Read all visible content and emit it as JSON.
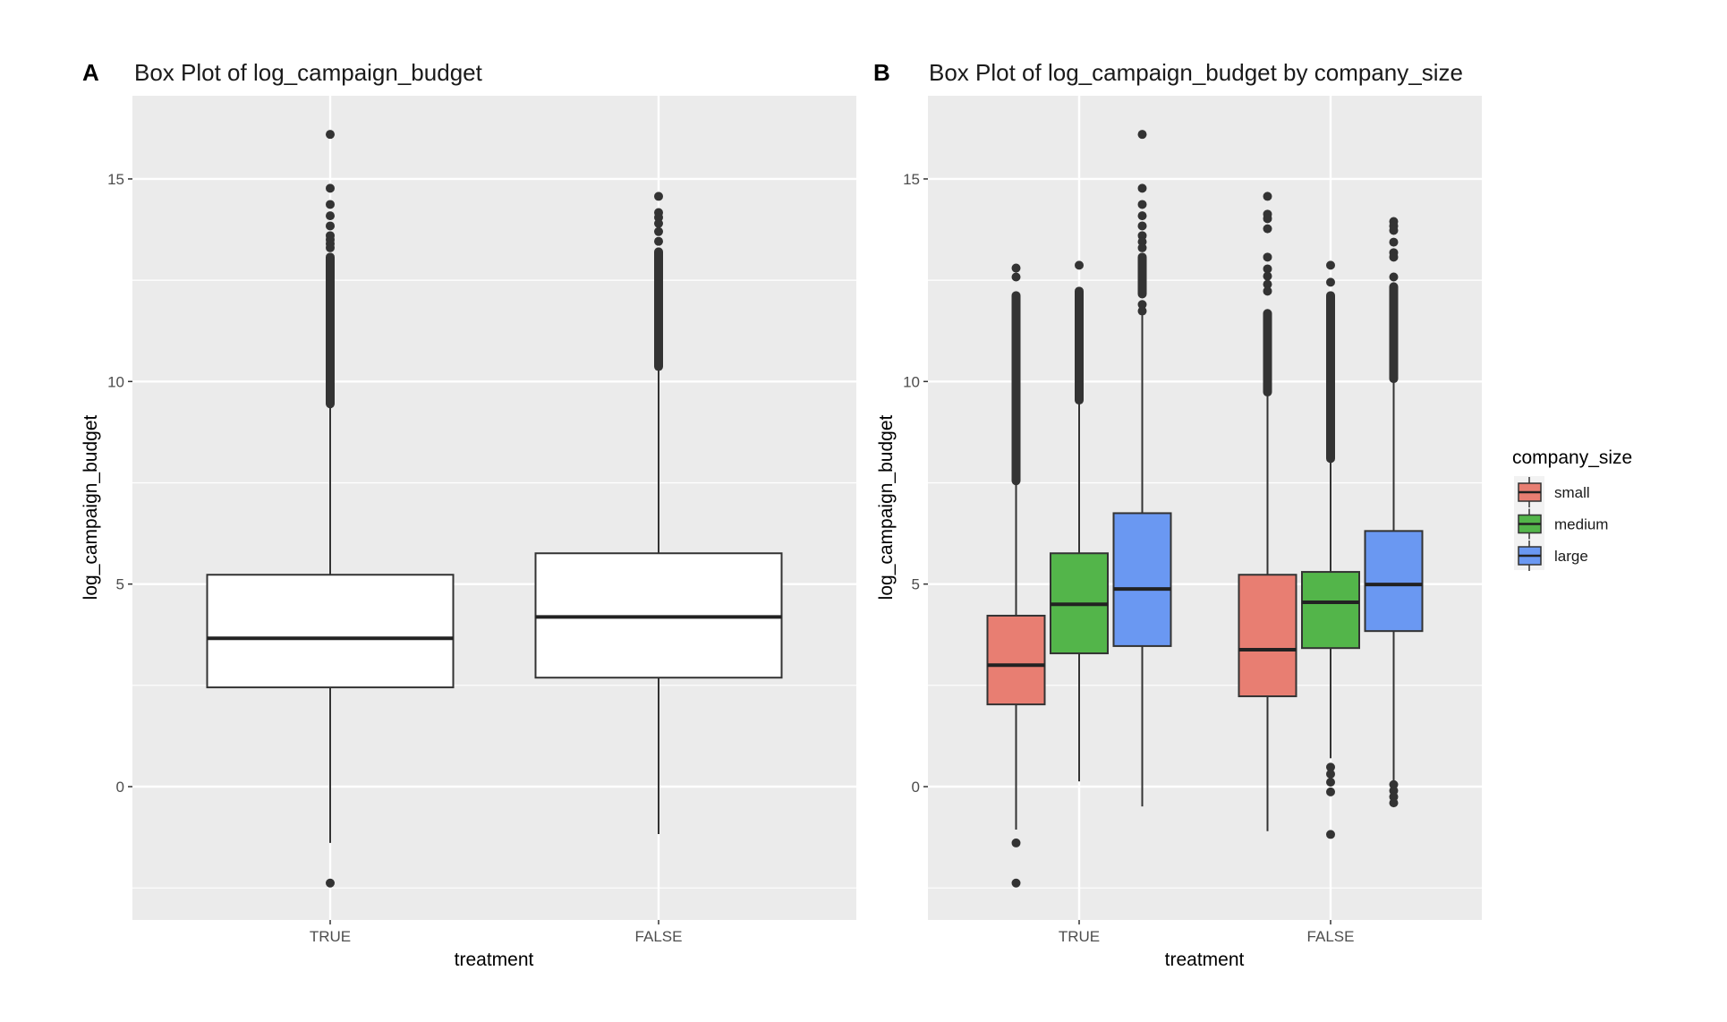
{
  "chart_data": [
    {
      "panel_letter": "A",
      "type": "box",
      "title": "Box Plot of log_campaign_budget",
      "xlabel": "treatment",
      "ylabel": "log_campaign_budget",
      "ylim": [
        -3.4,
        17.2
      ],
      "yticks": [
        0,
        5,
        10,
        15
      ],
      "yminor": [
        -2.5,
        2.5,
        7.5,
        12.5
      ],
      "grid": true,
      "categories": [
        "TRUE",
        "FALSE"
      ],
      "fill": "#ffffff",
      "boxes": [
        {
          "category": "TRUE",
          "whisker_low": -1.39,
          "q1": 2.45,
          "median": 3.66,
          "q3": 5.23,
          "whisker_high": 9.43,
          "outliers": [
            16.1,
            14.77,
            14.37,
            14.09,
            13.84,
            13.6,
            13.5,
            13.4,
            13.3
          ],
          "outlier_runs": [
            [
              9.45,
              13.07
            ]
          ],
          "low_outliers": [
            -2.38
          ]
        },
        {
          "category": "FALSE",
          "whisker_low": -1.17,
          "q1": 2.69,
          "median": 4.19,
          "q3": 5.76,
          "whisker_high": 10.35,
          "outliers": [
            14.57,
            14.17,
            14.05,
            13.9,
            13.7,
            13.46
          ],
          "outlier_runs": [
            [
              10.37,
              13.2
            ]
          ],
          "low_outliers": []
        }
      ]
    },
    {
      "panel_letter": "B",
      "type": "box",
      "title": "Box Plot of log_campaign_budget by company_size",
      "xlabel": "treatment",
      "ylabel": "log_campaign_budget",
      "ylim": [
        -3.4,
        17.2
      ],
      "yticks": [
        0,
        5,
        10,
        15
      ],
      "yminor": [
        -2.5,
        2.5,
        7.5,
        12.5
      ],
      "grid": true,
      "categories": [
        "TRUE",
        "FALSE"
      ],
      "legend": {
        "title": "company_size",
        "position": "right",
        "entries": [
          {
            "name": "small",
            "color": "#E87E72"
          },
          {
            "name": "medium",
            "color": "#53B54A"
          },
          {
            "name": "large",
            "color": "#6A98F2"
          }
        ]
      },
      "series": [
        {
          "name": "small",
          "color": "#E87E72",
          "boxes": [
            {
              "category": "TRUE",
              "whisker_low": -1.06,
              "q1": 2.03,
              "median": 3.0,
              "q3": 4.22,
              "whisker_high": 7.5,
              "outliers": [
                12.8,
                12.58
              ],
              "outlier_runs": [
                [
                  7.55,
                  12.12
                ]
              ],
              "low_outliers": [
                -1.39,
                -2.38
              ]
            },
            {
              "category": "FALSE",
              "whisker_low": -1.1,
              "q1": 2.23,
              "median": 3.38,
              "q3": 5.23,
              "whisker_high": 9.7,
              "outliers": [
                14.57,
                14.13,
                14.02,
                13.77,
                13.07,
                12.78,
                12.6,
                12.4,
                12.23
              ],
              "outlier_runs": [
                [
                  9.74,
                  11.68
                ]
              ],
              "low_outliers": []
            }
          ]
        },
        {
          "name": "medium",
          "color": "#53B54A",
          "boxes": [
            {
              "category": "TRUE",
              "whisker_low": 0.13,
              "q1": 3.29,
              "median": 4.5,
              "q3": 5.76,
              "whisker_high": 9.5,
              "outliers": [
                12.87
              ],
              "outlier_runs": [
                [
                  9.54,
                  12.23
                ]
              ],
              "low_outliers": []
            },
            {
              "category": "FALSE",
              "whisker_low": 0.7,
              "q1": 3.42,
              "median": 4.55,
              "q3": 5.3,
              "whisker_high": 8.1,
              "outliers": [
                12.87,
                12.45
              ],
              "outlier_runs": [
                [
                  8.1,
                  12.12
                ]
              ],
              "low_outliers": [
                0.48,
                0.31,
                0.11,
                -0.13,
                -1.18
              ]
            }
          ]
        },
        {
          "name": "large",
          "color": "#6A98F2",
          "boxes": [
            {
              "category": "TRUE",
              "whisker_low": -0.49,
              "q1": 3.47,
              "median": 4.88,
              "q3": 6.75,
              "whisker_high": 11.7,
              "outliers": [
                16.1,
                14.77,
                14.37,
                14.09,
                13.84,
                13.6,
                13.45,
                13.3,
                11.9,
                11.74
              ],
              "outlier_runs": [
                [
                  12.16,
                  13.07
                ]
              ],
              "low_outliers": []
            },
            {
              "category": "FALSE",
              "whisker_low": 0.15,
              "q1": 3.84,
              "median": 4.99,
              "q3": 6.31,
              "whisker_high": 10.05,
              "outliers": [
                13.95,
                13.84,
                13.73,
                13.44,
                13.18,
                13.07,
                12.58
              ],
              "outlier_runs": [
                [
                  10.07,
                  12.34
                ]
              ],
              "low_outliers": [
                0.05,
                -0.1,
                -0.25,
                -0.4
              ]
            }
          ]
        }
      ]
    }
  ]
}
